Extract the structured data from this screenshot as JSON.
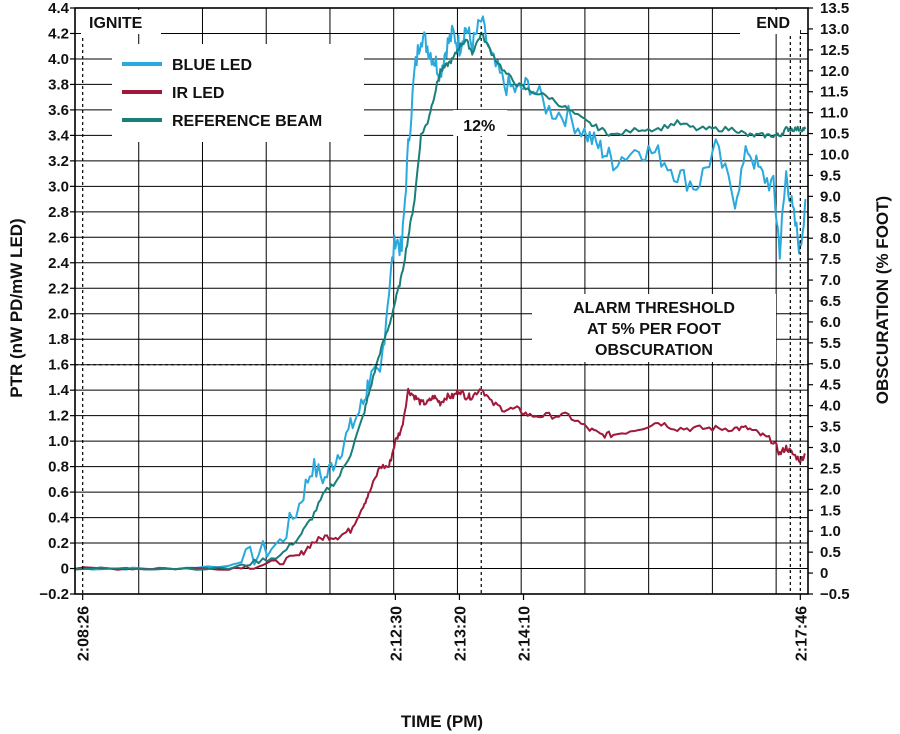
{
  "chart_data": {
    "type": "line",
    "xlabel": "TIME (PM)",
    "ylabel": "PTR (nW PD/mW LED)",
    "y2label": "OBSCURATION (% FOOT)",
    "xlim": [
      "2:08:20",
      "2:17:52"
    ],
    "ylim": [
      -0.2,
      4.4
    ],
    "y2lim": [
      -0.5,
      13.5
    ],
    "x_ticks": [
      "2:08:26",
      "2:12:30",
      "2:13:20",
      "2:14:10",
      "2:17:46"
    ],
    "y_ticks": [
      -0.2,
      0,
      0.2,
      0.4,
      0.6,
      0.8,
      1.0,
      1.2,
      1.4,
      1.6,
      1.8,
      2.0,
      2.2,
      2.4,
      2.6,
      2.8,
      3.0,
      3.2,
      3.4,
      3.6,
      3.8,
      4.0,
      4.2,
      4.4
    ],
    "y2_ticks": [
      -0.5,
      0,
      0.5,
      1.0,
      1.5,
      2.0,
      2.5,
      3.0,
      3.5,
      4.0,
      4.5,
      5.0,
      5.5,
      6.0,
      6.5,
      7.0,
      7.5,
      8.0,
      8.5,
      9.0,
      9.5,
      10.0,
      10.5,
      11.0,
      11.5,
      12.0,
      12.5,
      13.0,
      13.5
    ],
    "grid": true,
    "legend_position": "top-left",
    "annotations": {
      "start": "IGNITE",
      "end": "END",
      "peak": "12%",
      "threshold": "ALARM THRESHOLD\nAT 5% PER FOOT\nOBSCURATION"
    },
    "threshold_y": 1.6,
    "peak_time": "2:13:37",
    "series": [
      {
        "name": "BLUE LED",
        "color": "#2aa9dd",
        "x": [
          "2:08:20",
          "2:09:00",
          "2:09:30",
          "2:10:20",
          "2:10:40",
          "2:11:00",
          "2:11:15",
          "2:11:25",
          "2:11:35",
          "2:11:45",
          "2:11:55",
          "2:12:05",
          "2:12:10",
          "2:12:18",
          "2:12:25",
          "2:12:30",
          "2:12:35",
          "2:12:40",
          "2:12:45",
          "2:12:50",
          "2:12:55",
          "2:13:00",
          "2:13:05",
          "2:13:10",
          "2:13:15",
          "2:13:20",
          "2:13:25",
          "2:13:30",
          "2:13:37",
          "2:13:45",
          "2:13:55",
          "2:14:05",
          "2:14:15",
          "2:14:30",
          "2:14:45",
          "2:15:00",
          "2:15:10",
          "2:15:20",
          "2:15:40",
          "2:15:55",
          "2:16:10",
          "2:16:25",
          "2:16:40",
          "2:16:55",
          "2:17:05",
          "2:17:15",
          "2:17:25",
          "2:17:30",
          "2:17:35",
          "2:17:40",
          "2:17:46",
          "2:17:50"
        ],
        "y": [
          0.0,
          0.0,
          0.0,
          0.02,
          0.1,
          0.2,
          0.5,
          0.8,
          0.7,
          0.9,
          1.1,
          1.3,
          1.5,
          1.5,
          2.2,
          2.6,
          2.5,
          3.3,
          3.9,
          4.2,
          4.1,
          4.0,
          3.9,
          4.1,
          4.2,
          4.1,
          4.25,
          4.1,
          4.3,
          4.0,
          3.8,
          3.75,
          3.8,
          3.6,
          3.55,
          3.4,
          3.3,
          3.2,
          3.3,
          3.25,
          3.1,
          3.0,
          3.3,
          2.9,
          3.3,
          3.1,
          3.0,
          2.5,
          3.1,
          2.8,
          2.5,
          2.9
        ]
      },
      {
        "name": "IR LED",
        "color": "#a0183a",
        "x": [
          "2:08:20",
          "2:09:00",
          "2:09:30",
          "2:10:20",
          "2:10:40",
          "2:11:00",
          "2:11:15",
          "2:11:25",
          "2:11:35",
          "2:11:45",
          "2:11:55",
          "2:12:05",
          "2:12:10",
          "2:12:18",
          "2:12:25",
          "2:12:30",
          "2:12:35",
          "2:12:40",
          "2:12:45",
          "2:12:50",
          "2:12:55",
          "2:13:00",
          "2:13:05",
          "2:13:10",
          "2:13:15",
          "2:13:20",
          "2:13:25",
          "2:13:30",
          "2:13:37",
          "2:13:45",
          "2:13:55",
          "2:14:05",
          "2:14:15",
          "2:14:30",
          "2:14:45",
          "2:15:00",
          "2:15:10",
          "2:15:20",
          "2:15:40",
          "2:15:55",
          "2:16:10",
          "2:16:25",
          "2:16:40",
          "2:16:55",
          "2:17:05",
          "2:17:15",
          "2:17:25",
          "2:17:30",
          "2:17:35",
          "2:17:40",
          "2:17:46",
          "2:17:50"
        ],
        "y": [
          0.0,
          0.0,
          0.0,
          0.0,
          0.02,
          0.05,
          0.1,
          0.2,
          0.25,
          0.25,
          0.3,
          0.5,
          0.6,
          0.8,
          0.8,
          1.0,
          1.1,
          1.4,
          1.35,
          1.3,
          1.3,
          1.35,
          1.3,
          1.35,
          1.35,
          1.4,
          1.35,
          1.35,
          1.42,
          1.3,
          1.25,
          1.25,
          1.2,
          1.2,
          1.2,
          1.1,
          1.05,
          1.05,
          1.1,
          1.15,
          1.1,
          1.1,
          1.1,
          1.1,
          1.1,
          1.05,
          1.0,
          0.9,
          0.95,
          0.9,
          0.85,
          0.9
        ]
      },
      {
        "name": "REFERENCE BEAM",
        "color": "#1a7f78",
        "x": [
          "2:08:20",
          "2:09:00",
          "2:09:30",
          "2:10:20",
          "2:10:40",
          "2:11:00",
          "2:11:15",
          "2:11:25",
          "2:11:35",
          "2:11:45",
          "2:11:55",
          "2:12:05",
          "2:12:10",
          "2:12:18",
          "2:12:25",
          "2:12:30",
          "2:12:35",
          "2:12:40",
          "2:12:45",
          "2:12:50",
          "2:12:55",
          "2:13:00",
          "2:13:05",
          "2:13:10",
          "2:13:15",
          "2:13:20",
          "2:13:25",
          "2:13:30",
          "2:13:37",
          "2:13:45",
          "2:13:55",
          "2:14:05",
          "2:14:15",
          "2:14:30",
          "2:14:45",
          "2:15:00",
          "2:15:10",
          "2:15:20",
          "2:15:40",
          "2:15:55",
          "2:16:10",
          "2:16:25",
          "2:16:40",
          "2:16:55",
          "2:17:05",
          "2:17:15",
          "2:17:25",
          "2:17:30",
          "2:17:35",
          "2:17:40",
          "2:17:46",
          "2:17:50"
        ],
        "y": [
          0.0,
          0.0,
          0.0,
          0.0,
          0.05,
          0.1,
          0.25,
          0.4,
          0.6,
          0.7,
          0.9,
          1.2,
          1.4,
          1.7,
          1.9,
          2.1,
          2.3,
          2.6,
          2.9,
          3.4,
          3.5,
          3.7,
          3.9,
          3.95,
          4.0,
          4.1,
          4.15,
          4.05,
          4.2,
          4.05,
          3.9,
          3.8,
          3.75,
          3.7,
          3.6,
          3.5,
          3.45,
          3.4,
          3.45,
          3.45,
          3.5,
          3.45,
          3.45,
          3.45,
          3.4,
          3.4,
          3.4,
          3.4,
          3.45,
          3.45,
          3.45,
          3.45
        ]
      }
    ]
  }
}
